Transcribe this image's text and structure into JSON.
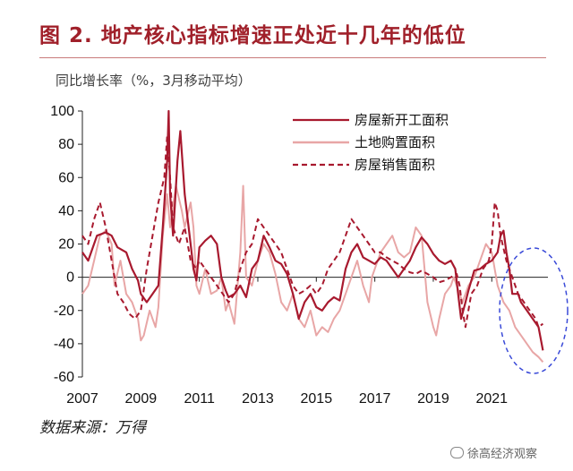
{
  "header": {
    "title": "图 2.  地产核心指标增速正处近十几年的低位",
    "ylabel": "同比增长率（%，3月移动平均）"
  },
  "footer": {
    "source": "数据来源：万得",
    "watermark": "徐高经济观察"
  },
  "colors": {
    "title": "#a0202a",
    "new_starts": "#a8192e",
    "land": "#e8a6a6",
    "sales": "#a8192e",
    "highlight": "#3a4ad8"
  },
  "chart_data": {
    "type": "line",
    "title": "",
    "xlabel": "",
    "ylabel": "同比增长率（%，3月移动平均）",
    "xlim": [
      2007.0,
      2022.92
    ],
    "ylim": [
      -60,
      100
    ],
    "xticks": [
      2007,
      2009,
      2011,
      2013,
      2015,
      2017,
      2019,
      2021
    ],
    "yticks": [
      100,
      80,
      60,
      40,
      20,
      0,
      -20,
      -40,
      -60
    ],
    "legend_position": "top-right",
    "annotation": "dashed blue ellipse highlighting 2021-2022",
    "series": [
      {
        "name": "房屋新开工面积",
        "style": "solid",
        "points": [
          [
            2007.0,
            15
          ],
          [
            2007.2,
            10
          ],
          [
            2007.5,
            25
          ],
          [
            2007.8,
            27
          ],
          [
            2008.0,
            25
          ],
          [
            2008.2,
            18
          ],
          [
            2008.5,
            15
          ],
          [
            2008.7,
            5
          ],
          [
            2008.9,
            -2
          ],
          [
            2009.0,
            -10
          ],
          [
            2009.2,
            -15
          ],
          [
            2009.4,
            -10
          ],
          [
            2009.6,
            -5
          ],
          [
            2009.75,
            30
          ],
          [
            2009.9,
            70
          ],
          [
            2009.95,
            100
          ],
          [
            2010.0,
            50
          ],
          [
            2010.1,
            25
          ],
          [
            2010.25,
            70
          ],
          [
            2010.35,
            88
          ],
          [
            2010.5,
            50
          ],
          [
            2010.7,
            20
          ],
          [
            2010.8,
            5
          ],
          [
            2010.9,
            -2
          ],
          [
            2011.0,
            18
          ],
          [
            2011.2,
            22
          ],
          [
            2011.4,
            25
          ],
          [
            2011.6,
            20
          ],
          [
            2011.75,
            0
          ],
          [
            2011.9,
            -8
          ],
          [
            2012.0,
            -12
          ],
          [
            2012.2,
            -10
          ],
          [
            2012.4,
            -5
          ],
          [
            2012.6,
            -12
          ],
          [
            2012.8,
            5
          ],
          [
            2013.0,
            10
          ],
          [
            2013.2,
            25
          ],
          [
            2013.4,
            18
          ],
          [
            2013.6,
            10
          ],
          [
            2013.8,
            8
          ],
          [
            2014.0,
            2
          ],
          [
            2014.2,
            -10
          ],
          [
            2014.4,
            -25
          ],
          [
            2014.6,
            -15
          ],
          [
            2014.8,
            -10
          ],
          [
            2015.0,
            -18
          ],
          [
            2015.2,
            -20
          ],
          [
            2015.4,
            -15
          ],
          [
            2015.6,
            -12
          ],
          [
            2015.8,
            -14
          ],
          [
            2016.0,
            5
          ],
          [
            2016.2,
            15
          ],
          [
            2016.4,
            20
          ],
          [
            2016.6,
            12
          ],
          [
            2016.8,
            10
          ],
          [
            2017.0,
            8
          ],
          [
            2017.2,
            12
          ],
          [
            2017.4,
            10
          ],
          [
            2017.6,
            5
          ],
          [
            2017.8,
            0
          ],
          [
            2018.0,
            5
          ],
          [
            2018.2,
            10
          ],
          [
            2018.4,
            18
          ],
          [
            2018.6,
            24
          ],
          [
            2018.8,
            20
          ],
          [
            2019.0,
            14
          ],
          [
            2019.2,
            10
          ],
          [
            2019.4,
            8
          ],
          [
            2019.6,
            10
          ],
          [
            2019.75,
            5
          ],
          [
            2019.85,
            -10
          ],
          [
            2019.95,
            -25
          ],
          [
            2020.1,
            -15
          ],
          [
            2020.2,
            -8
          ],
          [
            2020.4,
            4
          ],
          [
            2020.6,
            5
          ],
          [
            2020.8,
            8
          ],
          [
            2021.0,
            10
          ],
          [
            2021.2,
            15
          ],
          [
            2021.3,
            25
          ],
          [
            2021.4,
            28
          ],
          [
            2021.5,
            15
          ],
          [
            2021.6,
            5
          ],
          [
            2021.7,
            -10
          ],
          [
            2021.9,
            -10
          ],
          [
            2022.0,
            -15
          ],
          [
            2022.2,
            -20
          ],
          [
            2022.4,
            -25
          ],
          [
            2022.6,
            -30
          ],
          [
            2022.75,
            -44
          ]
        ]
      },
      {
        "name": "土地购置面积",
        "style": "solid",
        "points": [
          [
            2007.0,
            -10
          ],
          [
            2007.2,
            -5
          ],
          [
            2007.4,
            10
          ],
          [
            2007.6,
            25
          ],
          [
            2007.8,
            28
          ],
          [
            2008.0,
            20
          ],
          [
            2008.1,
            -5
          ],
          [
            2008.3,
            10
          ],
          [
            2008.5,
            -10
          ],
          [
            2008.7,
            -15
          ],
          [
            2008.9,
            -25
          ],
          [
            2009.0,
            -38
          ],
          [
            2009.1,
            -35
          ],
          [
            2009.3,
            -20
          ],
          [
            2009.5,
            -30
          ],
          [
            2009.6,
            -18
          ],
          [
            2009.75,
            25
          ],
          [
            2009.9,
            50
          ],
          [
            2010.0,
            30
          ],
          [
            2010.2,
            55
          ],
          [
            2010.4,
            40
          ],
          [
            2010.5,
            30
          ],
          [
            2010.7,
            45
          ],
          [
            2010.8,
            30
          ],
          [
            2010.9,
            -5
          ],
          [
            2011.0,
            -10
          ],
          [
            2011.2,
            5
          ],
          [
            2011.4,
            -10
          ],
          [
            2011.6,
            -8
          ],
          [
            2011.75,
            0
          ],
          [
            2011.9,
            -20
          ],
          [
            2012.0,
            -15
          ],
          [
            2012.2,
            -28
          ],
          [
            2012.4,
            15
          ],
          [
            2012.5,
            55
          ],
          [
            2012.6,
            0
          ],
          [
            2012.8,
            -5
          ],
          [
            2013.0,
            10
          ],
          [
            2013.2,
            20
          ],
          [
            2013.4,
            15
          ],
          [
            2013.6,
            2
          ],
          [
            2013.8,
            -15
          ],
          [
            2014.0,
            -20
          ],
          [
            2014.2,
            -10
          ],
          [
            2014.4,
            -25
          ],
          [
            2014.6,
            -30
          ],
          [
            2014.8,
            -20
          ],
          [
            2015.0,
            -35
          ],
          [
            2015.2,
            -30
          ],
          [
            2015.4,
            -33
          ],
          [
            2015.6,
            -25
          ],
          [
            2015.8,
            -20
          ],
          [
            2016.0,
            -10
          ],
          [
            2016.2,
            0
          ],
          [
            2016.4,
            10
          ],
          [
            2016.6,
            -5
          ],
          [
            2016.8,
            -15
          ],
          [
            2016.9,
            0
          ],
          [
            2017.0,
            5
          ],
          [
            2017.2,
            15
          ],
          [
            2017.4,
            20
          ],
          [
            2017.6,
            25
          ],
          [
            2017.8,
            15
          ],
          [
            2018.0,
            12
          ],
          [
            2018.2,
            15
          ],
          [
            2018.4,
            30
          ],
          [
            2018.6,
            25
          ],
          [
            2018.7,
            5
          ],
          [
            2018.8,
            -15
          ],
          [
            2019.0,
            -30
          ],
          [
            2019.1,
            -35
          ],
          [
            2019.2,
            -25
          ],
          [
            2019.4,
            -10
          ],
          [
            2019.6,
            -5
          ],
          [
            2019.7,
            0
          ],
          [
            2019.8,
            -5
          ],
          [
            2019.9,
            -10
          ],
          [
            2020.0,
            -15
          ],
          [
            2020.2,
            -5
          ],
          [
            2020.4,
            0
          ],
          [
            2020.6,
            10
          ],
          [
            2020.8,
            20
          ],
          [
            2021.0,
            15
          ],
          [
            2021.2,
            -5
          ],
          [
            2021.4,
            -15
          ],
          [
            2021.6,
            -20
          ],
          [
            2021.8,
            -30
          ],
          [
            2022.0,
            -35
          ],
          [
            2022.2,
            -40
          ],
          [
            2022.4,
            -45
          ],
          [
            2022.6,
            -48
          ],
          [
            2022.75,
            -51
          ]
        ]
      },
      {
        "name": "房屋销售面积",
        "style": "dashed",
        "points": [
          [
            2007.0,
            25
          ],
          [
            2007.2,
            20
          ],
          [
            2007.4,
            35
          ],
          [
            2007.6,
            45
          ],
          [
            2007.8,
            30
          ],
          [
            2008.0,
            10
          ],
          [
            2008.2,
            -10
          ],
          [
            2008.4,
            -15
          ],
          [
            2008.6,
            -22
          ],
          [
            2008.8,
            -25
          ],
          [
            2009.0,
            -20
          ],
          [
            2009.2,
            5
          ],
          [
            2009.4,
            25
          ],
          [
            2009.6,
            45
          ],
          [
            2009.8,
            60
          ],
          [
            2009.9,
            85
          ],
          [
            2010.0,
            60
          ],
          [
            2010.1,
            30
          ],
          [
            2010.3,
            20
          ],
          [
            2010.5,
            30
          ],
          [
            2010.7,
            10
          ],
          [
            2010.9,
            5
          ],
          [
            2011.0,
            10
          ],
          [
            2011.2,
            5
          ],
          [
            2011.4,
            0
          ],
          [
            2011.6,
            -5
          ],
          [
            2011.8,
            -10
          ],
          [
            2012.0,
            -15
          ],
          [
            2012.2,
            -10
          ],
          [
            2012.4,
            5
          ],
          [
            2012.6,
            15
          ],
          [
            2012.8,
            20
          ],
          [
            2013.0,
            35
          ],
          [
            2013.2,
            30
          ],
          [
            2013.4,
            25
          ],
          [
            2013.6,
            20
          ],
          [
            2013.8,
            15
          ],
          [
            2014.0,
            5
          ],
          [
            2014.2,
            -5
          ],
          [
            2014.4,
            -10
          ],
          [
            2014.6,
            -8
          ],
          [
            2014.8,
            -5
          ],
          [
            2015.0,
            -10
          ],
          [
            2015.2,
            -5
          ],
          [
            2015.4,
            5
          ],
          [
            2015.6,
            10
          ],
          [
            2015.8,
            15
          ],
          [
            2016.0,
            25
          ],
          [
            2016.2,
            35
          ],
          [
            2016.4,
            30
          ],
          [
            2016.6,
            25
          ],
          [
            2016.8,
            20
          ],
          [
            2017.0,
            15
          ],
          [
            2017.2,
            15
          ],
          [
            2017.4,
            12
          ],
          [
            2017.6,
            10
          ],
          [
            2017.8,
            8
          ],
          [
            2018.0,
            5
          ],
          [
            2018.2,
            3
          ],
          [
            2018.4,
            2
          ],
          [
            2018.6,
            4
          ],
          [
            2018.8,
            2
          ],
          [
            2019.0,
            0
          ],
          [
            2019.2,
            -3
          ],
          [
            2019.4,
            -2
          ],
          [
            2019.6,
            0
          ],
          [
            2019.8,
            2
          ],
          [
            2019.9,
            -5
          ],
          [
            2020.0,
            -20
          ],
          [
            2020.1,
            -30
          ],
          [
            2020.3,
            -10
          ],
          [
            2020.5,
            -5
          ],
          [
            2020.7,
            5
          ],
          [
            2020.9,
            10
          ],
          [
            2021.0,
            20
          ],
          [
            2021.1,
            45
          ],
          [
            2021.2,
            40
          ],
          [
            2021.3,
            25
          ],
          [
            2021.5,
            10
          ],
          [
            2021.7,
            0
          ],
          [
            2021.9,
            -10
          ],
          [
            2022.1,
            -15
          ],
          [
            2022.3,
            -20
          ],
          [
            2022.5,
            -25
          ],
          [
            2022.6,
            -30
          ],
          [
            2022.75,
            -28
          ]
        ]
      }
    ]
  }
}
